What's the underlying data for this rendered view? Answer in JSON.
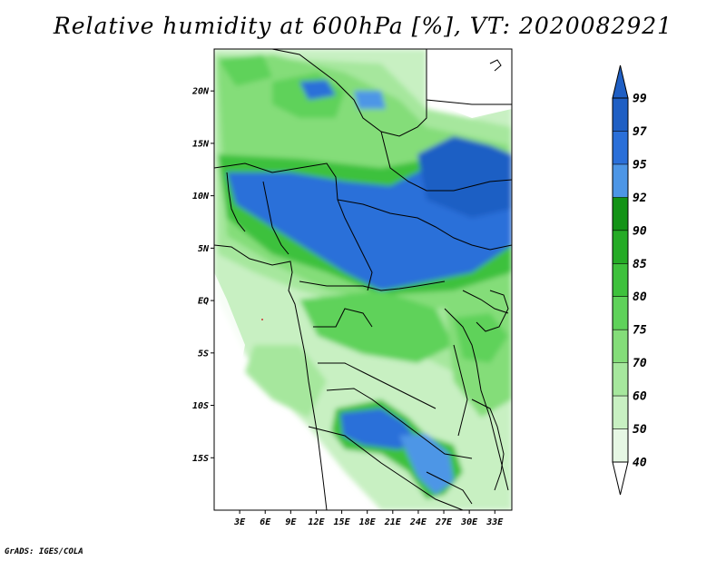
{
  "title": "Relative humidity at 600hPa [%], VT: 2020082921",
  "credit": "GrADS: IGES/COLA",
  "map": {
    "lon_range": [
      0,
      35
    ],
    "lat_range": [
      -20,
      24
    ],
    "lon_ticks": [
      {
        "value": 3,
        "label": "3E"
      },
      {
        "value": 6,
        "label": "6E"
      },
      {
        "value": 9,
        "label": "9E"
      },
      {
        "value": 12,
        "label": "12E"
      },
      {
        "value": 15,
        "label": "15E"
      },
      {
        "value": 18,
        "label": "18E"
      },
      {
        "value": 21,
        "label": "21E"
      },
      {
        "value": 24,
        "label": "24E"
      },
      {
        "value": 27,
        "label": "27E"
      },
      {
        "value": 30,
        "label": "30E"
      },
      {
        "value": 33,
        "label": "33E"
      }
    ],
    "lat_ticks": [
      {
        "value": 20,
        "label": "20N"
      },
      {
        "value": 15,
        "label": "15N"
      },
      {
        "value": 10,
        "label": "10N"
      },
      {
        "value": 5,
        "label": "5N"
      },
      {
        "value": 0,
        "label": "EQ"
      },
      {
        "value": -5,
        "label": "5S"
      },
      {
        "value": -10,
        "label": "10S"
      },
      {
        "value": -15,
        "label": "15S"
      }
    ]
  },
  "colorbar": {
    "levels": [
      {
        "label": "40",
        "color": "#ffffff"
      },
      {
        "label": "50",
        "color": "#e6f7e4"
      },
      {
        "label": "60",
        "color": "#c8f0c2"
      },
      {
        "label": "70",
        "color": "#a6e79d"
      },
      {
        "label": "75",
        "color": "#84dd79"
      },
      {
        "label": "80",
        "color": "#5fd25a"
      },
      {
        "label": "85",
        "color": "#3ec13c"
      },
      {
        "label": "90",
        "color": "#25ab26"
      },
      {
        "label": "92",
        "color": "#139316"
      },
      {
        "label": "95",
        "color": "#4d96e6"
      },
      {
        "label": "97",
        "color": "#2a6fd9"
      },
      {
        "label": "99",
        "color": "#1f5fc4"
      }
    ],
    "top_color": "#1f5fc4",
    "bottom_color": "#ffffff"
  }
}
